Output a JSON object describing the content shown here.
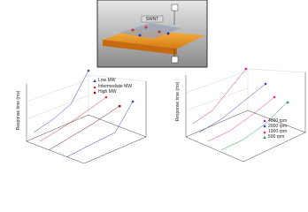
{
  "schematic": {
    "labels": [
      "SWNT"
    ]
  },
  "plots": [
    {
      "y_label": "Response time (ms)",
      "legend": [
        "Low MW",
        "Intermediate MW",
        "High MW"
      ]
    },
    {
      "y_label": "Response time (ms)",
      "legend": [
        "4000 rpm",
        "2000 rpm",
        "1000 rpm",
        "500 rpm"
      ]
    }
  ]
}
